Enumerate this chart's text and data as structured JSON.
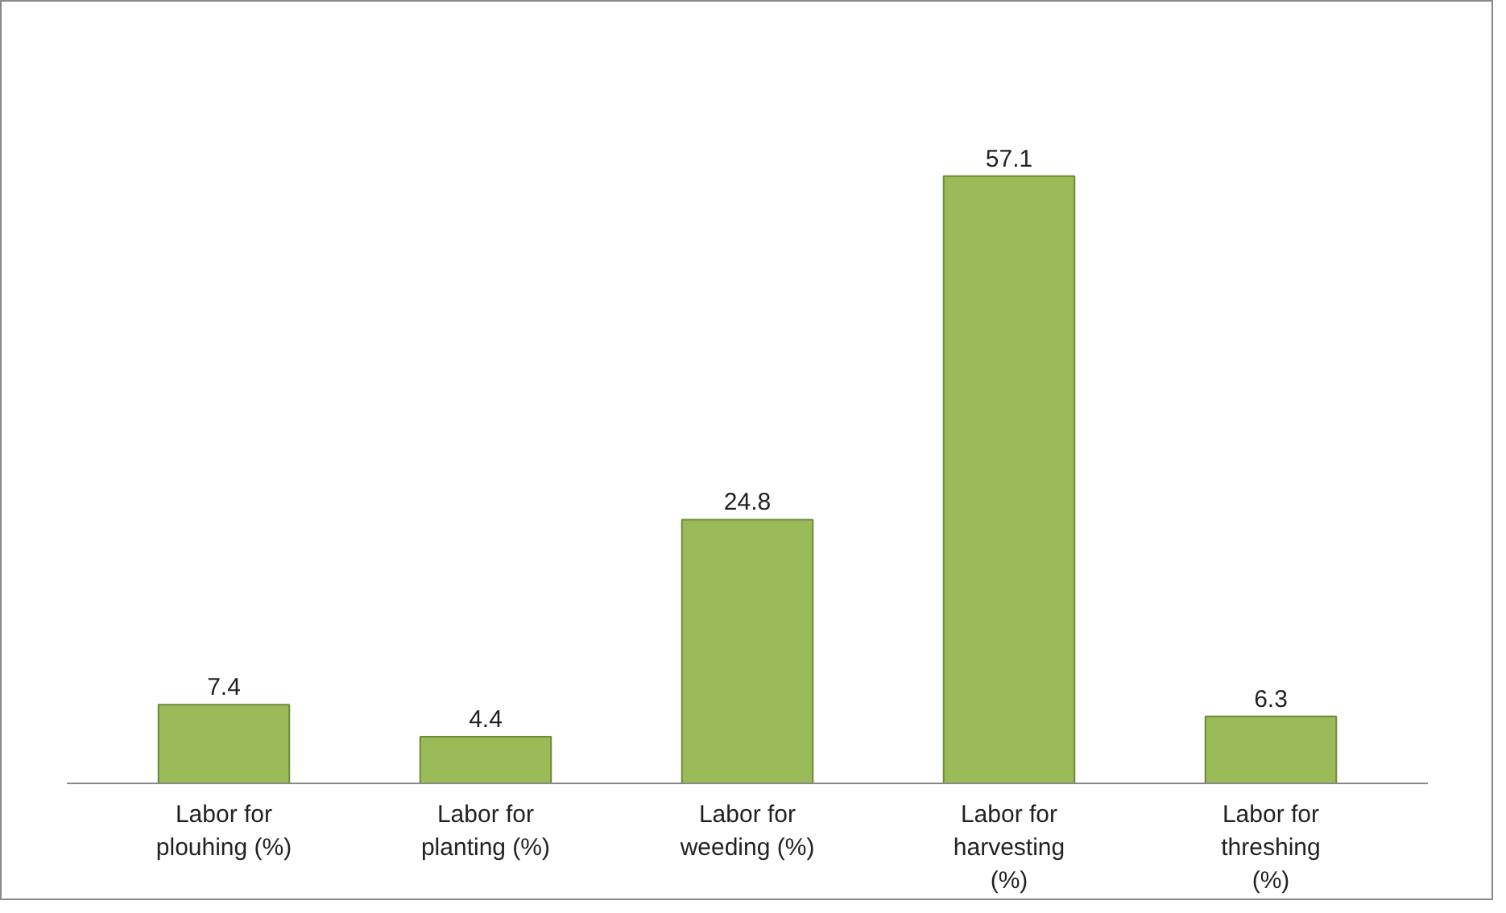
{
  "chart_data": {
    "type": "bar",
    "categories": [
      "Labor for plouhing (%)",
      "Labor for planting (%)",
      "Labor for weeding (%)",
      "Labor for harvesting (%)",
      "Labor for threshing (%)"
    ],
    "values": [
      7.4,
      4.4,
      24.8,
      57.1,
      6.3
    ],
    "color": "#9bbb59",
    "data_labels": true,
    "tick_labels": "x"
  }
}
